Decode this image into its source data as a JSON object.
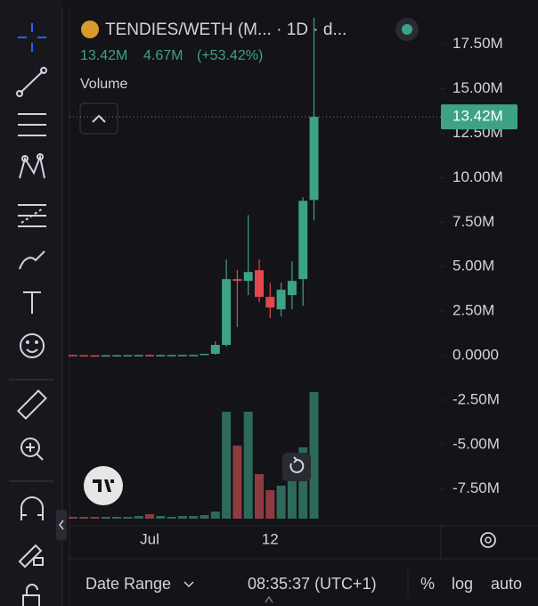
{
  "header": {
    "symbol": "TENDIES/WETH (M... · 1D · d...",
    "close": "13.42M",
    "change": "4.67M",
    "change_pct": "(+53.42%)",
    "volume_label": "Volume"
  },
  "chart_data": {
    "type": "candlestick",
    "categories": [
      null,
      null,
      null,
      null,
      null,
      null,
      null,
      "Jul",
      null,
      null,
      null,
      null,
      null,
      null,
      null,
      null,
      null,
      null,
      "12",
      null,
      null,
      null,
      null
    ],
    "open": [
      30000,
      20000,
      15000,
      12000,
      20000,
      22000,
      25000,
      30000,
      28000,
      30000,
      32000,
      35000,
      38000,
      100000,
      600000,
      4300000,
      4200000,
      4800000,
      3300000,
      2600000,
      3400000,
      4300000,
      8750000
    ],
    "high": [
      40000,
      30000,
      20000,
      25000,
      30000,
      30000,
      35000,
      60000,
      35000,
      38000,
      40000,
      42000,
      60000,
      800000,
      5400000,
      4800000,
      7900000,
      5400000,
      4100000,
      4100000,
      5300000,
      8900000,
      19000000
    ],
    "low": [
      15000,
      10000,
      8000,
      10000,
      15000,
      18000,
      20000,
      25000,
      22000,
      25000,
      28000,
      30000,
      32000,
      50000,
      500000,
      1600000,
      3400000,
      3000000,
      2100000,
      2200000,
      2600000,
      2800000,
      7600000
    ],
    "close": [
      20000,
      15000,
      12000,
      20000,
      22000,
      25000,
      30000,
      28000,
      30000,
      32000,
      35000,
      38000,
      100000,
      600000,
      4300000,
      4200000,
      4700000,
      3300000,
      2700000,
      3700000,
      4200000,
      8700000,
      13420000
    ],
    "volume": [
      2,
      2,
      2,
      2,
      2,
      2,
      3,
      5,
      3,
      2,
      3,
      3,
      4,
      8,
      120,
      82,
      120,
      50,
      32,
      37,
      42,
      80,
      142
    ],
    "vlim": [
      0,
      150
    ],
    "up_color": "#3ea287",
    "down_color": "#e2474f",
    "volume_up_color": "#2e6a5a",
    "volume_down_color": "#8e3b40",
    "ylim": [
      -9320000,
      19240000
    ],
    "yticks": [
      {
        "value": 17500000,
        "label": "17.50M"
      },
      {
        "value": 15000000,
        "label": "15.00M"
      },
      {
        "value": 12500000,
        "label": "12.50M"
      },
      {
        "value": 10000000,
        "label": "10.00M"
      },
      {
        "value": 7500000,
        "label": "7.50M"
      },
      {
        "value": 5000000,
        "label": "5.00M"
      },
      {
        "value": 2500000,
        "label": "2.50M"
      },
      {
        "value": 0,
        "label": "0.0000"
      },
      {
        "value": -2500000,
        "label": "-2.50M"
      },
      {
        "value": -5000000,
        "label": "-5.00M"
      },
      {
        "value": -7500000,
        "label": "-7.50M"
      }
    ],
    "last_price": {
      "value": 13420000,
      "label": "13.42M"
    }
  },
  "footer": {
    "date_range": "Date Range",
    "time": "08:35:37 (UTC+1)",
    "percent": "%",
    "log": "log",
    "auto": "auto"
  }
}
